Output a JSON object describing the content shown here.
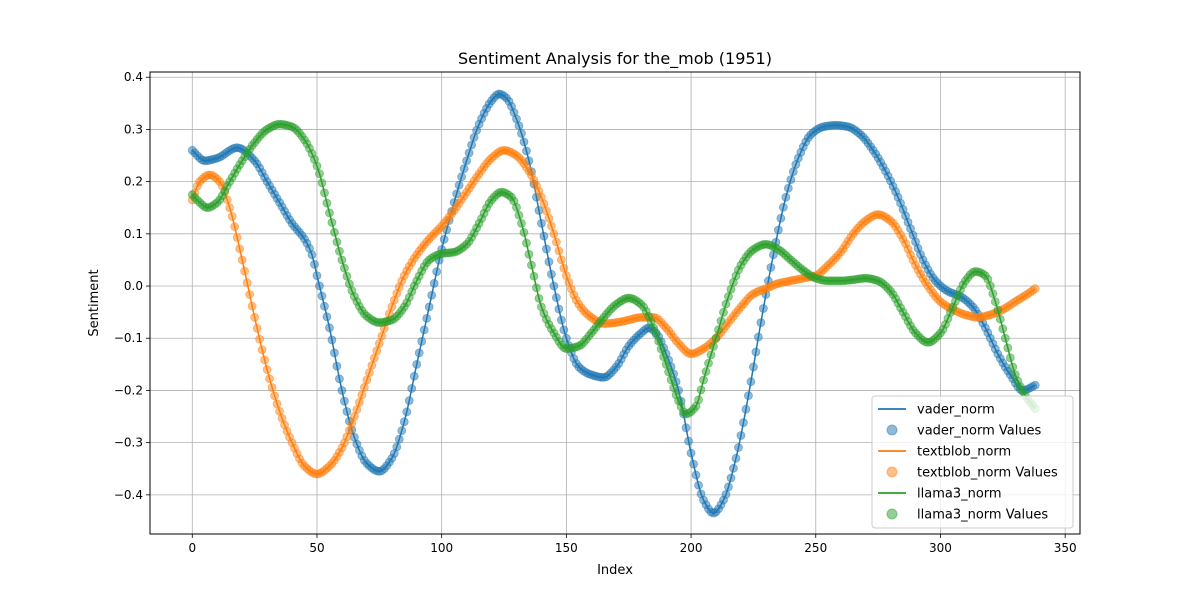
{
  "chart_data": {
    "type": "line",
    "title": "Sentiment Analysis for the_mob (1951)",
    "xlabel": "Index",
    "ylabel": "Sentiment",
    "xlim": [
      -16.95,
      355.95
    ],
    "ylim": [
      -0.475,
      0.41
    ],
    "xticks": [
      0,
      50,
      100,
      150,
      200,
      250,
      300,
      350
    ],
    "yticks": [
      -0.4,
      -0.3,
      -0.2,
      -0.1,
      0.0,
      0.1,
      0.2,
      0.3,
      0.4
    ],
    "xtick_labels": [
      "0",
      "50",
      "100",
      "150",
      "200",
      "250",
      "300",
      "350"
    ],
    "ytick_labels": [
      "−0.4",
      "−0.3",
      "−0.2",
      "−0.1",
      "0.0",
      "0.1",
      "0.2",
      "0.3",
      "0.4"
    ],
    "grid": true,
    "legend_position": "lower-right",
    "n_points": 339,
    "series": [
      {
        "name": "vader_norm",
        "scatter_name": "vader_norm Values",
        "color": "#1f77b4",
        "keypoints": [
          [
            0,
            0.26
          ],
          [
            5,
            0.24
          ],
          [
            10,
            0.245
          ],
          [
            18,
            0.265
          ],
          [
            25,
            0.24
          ],
          [
            30,
            0.2
          ],
          [
            35,
            0.16
          ],
          [
            40,
            0.12
          ],
          [
            45,
            0.09
          ],
          [
            48,
            0.06
          ],
          [
            50,
            0.02
          ],
          [
            55,
            -0.08
          ],
          [
            60,
            -0.2
          ],
          [
            65,
            -0.29
          ],
          [
            70,
            -0.34
          ],
          [
            75,
            -0.355
          ],
          [
            80,
            -0.33
          ],
          [
            85,
            -0.26
          ],
          [
            90,
            -0.15
          ],
          [
            95,
            -0.04
          ],
          [
            100,
            0.07
          ],
          [
            105,
            0.16
          ],
          [
            110,
            0.24
          ],
          [
            115,
            0.31
          ],
          [
            120,
            0.355
          ],
          [
            123,
            0.368
          ],
          [
            126,
            0.36
          ],
          [
            130,
            0.32
          ],
          [
            135,
            0.24
          ],
          [
            140,
            0.12
          ],
          [
            145,
            0.0
          ],
          [
            150,
            -0.1
          ],
          [
            155,
            -0.155
          ],
          [
            160,
            -0.17
          ],
          [
            165,
            -0.175
          ],
          [
            170,
            -0.155
          ],
          [
            175,
            -0.115
          ],
          [
            180,
            -0.09
          ],
          [
            183,
            -0.08
          ],
          [
            186,
            -0.09
          ],
          [
            190,
            -0.13
          ],
          [
            195,
            -0.2
          ],
          [
            200,
            -0.32
          ],
          [
            205,
            -0.41
          ],
          [
            209,
            -0.435
          ],
          [
            213,
            -0.41
          ],
          [
            218,
            -0.33
          ],
          [
            223,
            -0.21
          ],
          [
            228,
            -0.07
          ],
          [
            233,
            0.06
          ],
          [
            238,
            0.17
          ],
          [
            243,
            0.245
          ],
          [
            248,
            0.29
          ],
          [
            253,
            0.305
          ],
          [
            258,
            0.308
          ],
          [
            263,
            0.305
          ],
          [
            268,
            0.29
          ],
          [
            273,
            0.26
          ],
          [
            278,
            0.22
          ],
          [
            283,
            0.17
          ],
          [
            288,
            0.11
          ],
          [
            293,
            0.05
          ],
          [
            298,
            0.01
          ],
          [
            303,
            -0.01
          ],
          [
            308,
            -0.02
          ],
          [
            313,
            -0.04
          ],
          [
            318,
            -0.08
          ],
          [
            323,
            -0.13
          ],
          [
            328,
            -0.17
          ],
          [
            333,
            -0.2
          ],
          [
            338,
            -0.19
          ]
        ]
      },
      {
        "name": "textblob_norm",
        "scatter_name": "textblob_norm Values",
        "color": "#ff7f0e",
        "keypoints": [
          [
            0,
            0.165
          ],
          [
            3,
            0.2
          ],
          [
            7,
            0.213
          ],
          [
            11,
            0.2
          ],
          [
            15,
            0.15
          ],
          [
            20,
            0.05
          ],
          [
            25,
            -0.06
          ],
          [
            30,
            -0.16
          ],
          [
            35,
            -0.24
          ],
          [
            40,
            -0.3
          ],
          [
            45,
            -0.345
          ],
          [
            50,
            -0.36
          ],
          [
            55,
            -0.345
          ],
          [
            60,
            -0.31
          ],
          [
            65,
            -0.25
          ],
          [
            70,
            -0.18
          ],
          [
            75,
            -0.11
          ],
          [
            80,
            -0.04
          ],
          [
            85,
            0.02
          ],
          [
            90,
            0.06
          ],
          [
            95,
            0.09
          ],
          [
            100,
            0.115
          ],
          [
            105,
            0.145
          ],
          [
            110,
            0.18
          ],
          [
            115,
            0.215
          ],
          [
            120,
            0.245
          ],
          [
            125,
            0.26
          ],
          [
            130,
            0.25
          ],
          [
            135,
            0.22
          ],
          [
            140,
            0.17
          ],
          [
            145,
            0.1
          ],
          [
            150,
            0.02
          ],
          [
            155,
            -0.035
          ],
          [
            160,
            -0.06
          ],
          [
            165,
            -0.072
          ],
          [
            170,
            -0.07
          ],
          [
            175,
            -0.065
          ],
          [
            180,
            -0.06
          ],
          [
            185,
            -0.06
          ],
          [
            190,
            -0.08
          ],
          [
            195,
            -0.11
          ],
          [
            200,
            -0.13
          ],
          [
            205,
            -0.12
          ],
          [
            210,
            -0.1
          ],
          [
            215,
            -0.07
          ],
          [
            220,
            -0.04
          ],
          [
            225,
            -0.015
          ],
          [
            230,
            -0.005
          ],
          [
            235,
            0.005
          ],
          [
            240,
            0.01
          ],
          [
            245,
            0.015
          ],
          [
            250,
            0.02
          ],
          [
            255,
            0.04
          ],
          [
            260,
            0.065
          ],
          [
            265,
            0.1
          ],
          [
            270,
            0.125
          ],
          [
            275,
            0.137
          ],
          [
            280,
            0.125
          ],
          [
            285,
            0.09
          ],
          [
            290,
            0.04
          ],
          [
            295,
            0.0
          ],
          [
            300,
            -0.03
          ],
          [
            305,
            -0.045
          ],
          [
            310,
            -0.055
          ],
          [
            315,
            -0.06
          ],
          [
            320,
            -0.055
          ],
          [
            325,
            -0.045
          ],
          [
            330,
            -0.03
          ],
          [
            335,
            -0.015
          ],
          [
            338,
            -0.005
          ]
        ]
      },
      {
        "name": "llama3_norm",
        "scatter_name": "llama3_norm Values",
        "color": "#2ca02c",
        "keypoints": [
          [
            0,
            0.175
          ],
          [
            3,
            0.16
          ],
          [
            6,
            0.15
          ],
          [
            10,
            0.16
          ],
          [
            15,
            0.2
          ],
          [
            20,
            0.24
          ],
          [
            25,
            0.275
          ],
          [
            30,
            0.3
          ],
          [
            35,
            0.31
          ],
          [
            40,
            0.305
          ],
          [
            45,
            0.28
          ],
          [
            50,
            0.23
          ],
          [
            55,
            0.14
          ],
          [
            60,
            0.05
          ],
          [
            65,
            -0.02
          ],
          [
            70,
            -0.058
          ],
          [
            75,
            -0.07
          ],
          [
            80,
            -0.065
          ],
          [
            85,
            -0.04
          ],
          [
            90,
            0.01
          ],
          [
            95,
            0.05
          ],
          [
            100,
            0.062
          ],
          [
            105,
            0.065
          ],
          [
            110,
            0.08
          ],
          [
            115,
            0.12
          ],
          [
            120,
            0.165
          ],
          [
            124,
            0.18
          ],
          [
            128,
            0.17
          ],
          [
            132,
            0.12
          ],
          [
            136,
            0.04
          ],
          [
            140,
            -0.04
          ],
          [
            145,
            -0.09
          ],
          [
            150,
            -0.12
          ],
          [
            155,
            -0.115
          ],
          [
            160,
            -0.09
          ],
          [
            165,
            -0.06
          ],
          [
            170,
            -0.035
          ],
          [
            175,
            -0.023
          ],
          [
            180,
            -0.035
          ],
          [
            185,
            -0.08
          ],
          [
            190,
            -0.15
          ],
          [
            195,
            -0.22
          ],
          [
            198,
            -0.245
          ],
          [
            202,
            -0.23
          ],
          [
            205,
            -0.18
          ],
          [
            210,
            -0.1
          ],
          [
            215,
            -0.02
          ],
          [
            220,
            0.04
          ],
          [
            225,
            0.07
          ],
          [
            230,
            0.08
          ],
          [
            235,
            0.07
          ],
          [
            240,
            0.05
          ],
          [
            245,
            0.03
          ],
          [
            250,
            0.015
          ],
          [
            255,
            0.01
          ],
          [
            260,
            0.01
          ],
          [
            265,
            0.012
          ],
          [
            270,
            0.015
          ],
          [
            275,
            0.01
          ],
          [
            280,
            -0.01
          ],
          [
            285,
            -0.05
          ],
          [
            290,
            -0.09
          ],
          [
            295,
            -0.108
          ],
          [
            300,
            -0.09
          ],
          [
            305,
            -0.04
          ],
          [
            310,
            0.01
          ],
          [
            314,
            0.028
          ],
          [
            318,
            0.02
          ],
          [
            322,
            -0.03
          ],
          [
            326,
            -0.1
          ],
          [
            330,
            -0.17
          ],
          [
            334,
            -0.21
          ],
          [
            338,
            -0.235
          ]
        ]
      }
    ]
  }
}
